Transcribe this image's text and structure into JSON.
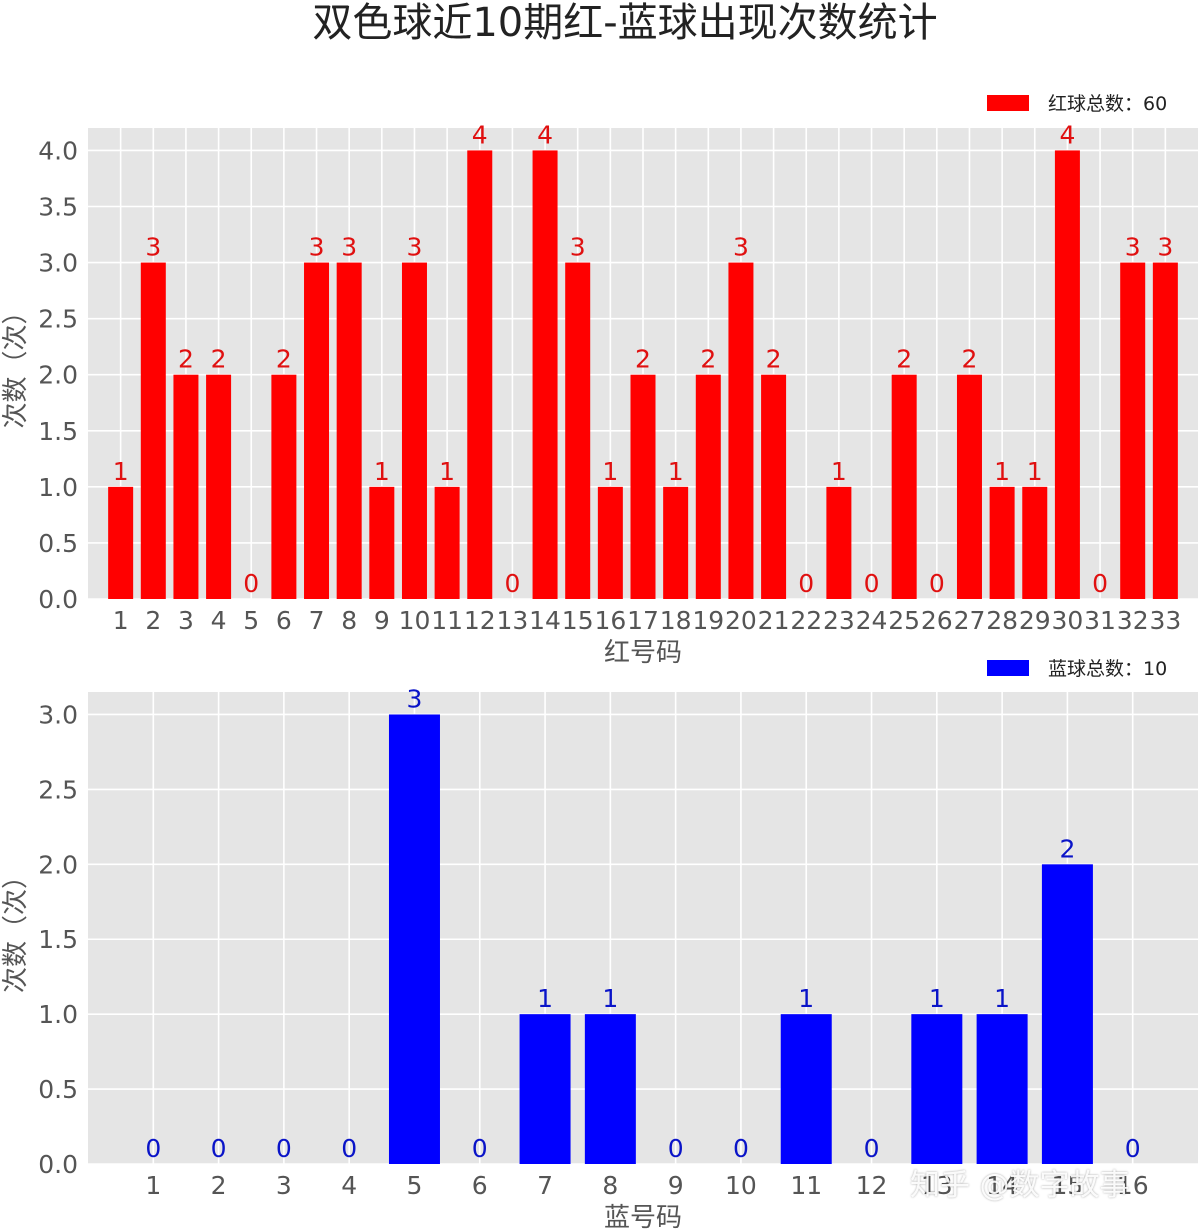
{
  "title": "双色球近10期红-蓝球出现次数统计",
  "watermark": "知乎 @数字故事",
  "chart_data": [
    {
      "type": "bar",
      "color": "#ff0000",
      "label_color": "#e01010",
      "legend": "红球总数：60",
      "legend_position": "top-right",
      "categories": [
        "1",
        "2",
        "3",
        "4",
        "5",
        "6",
        "7",
        "8",
        "9",
        "10",
        "11",
        "12",
        "13",
        "14",
        "15",
        "16",
        "17",
        "18",
        "19",
        "20",
        "21",
        "22",
        "23",
        "24",
        "25",
        "26",
        "27",
        "28",
        "29",
        "30",
        "31",
        "32",
        "33"
      ],
      "values": [
        1,
        3,
        2,
        2,
        0,
        2,
        3,
        3,
        1,
        3,
        1,
        4,
        0,
        4,
        3,
        1,
        2,
        1,
        2,
        3,
        2,
        0,
        1,
        0,
        2,
        0,
        2,
        1,
        1,
        4,
        0,
        3,
        3
      ],
      "xlabel": "红号码",
      "ylabel": "次数（次）",
      "ylim": [
        0,
        4.2
      ],
      "yticks": [
        "0.0",
        "0.5",
        "1.0",
        "1.5",
        "2.0",
        "2.5",
        "3.0",
        "3.5",
        "4.0"
      ],
      "grid": true
    },
    {
      "type": "bar",
      "color": "#0000ff",
      "label_color": "#0a14c8",
      "legend": "蓝球总数：10",
      "legend_position": "top-right",
      "categories": [
        "1",
        "2",
        "3",
        "4",
        "5",
        "6",
        "7",
        "8",
        "9",
        "10",
        "11",
        "12",
        "13",
        "14",
        "15",
        "16"
      ],
      "values": [
        0,
        0,
        0,
        0,
        3,
        0,
        1,
        1,
        0,
        0,
        1,
        0,
        1,
        1,
        2,
        0
      ],
      "xlabel": "蓝号码",
      "ylabel": "次数（次）",
      "ylim": [
        0,
        3.15
      ],
      "yticks": [
        "0.0",
        "0.5",
        "1.0",
        "1.5",
        "2.0",
        "2.5",
        "3.0"
      ],
      "grid": true
    }
  ]
}
